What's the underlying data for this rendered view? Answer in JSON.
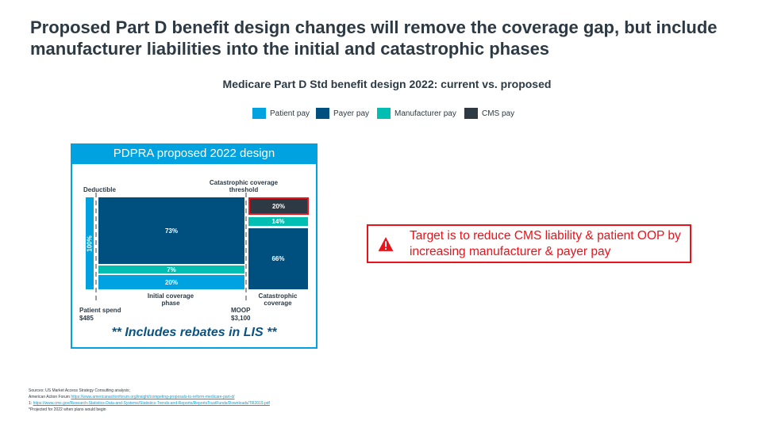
{
  "title": "Proposed Part D benefit design changes will remove the coverage gap, but include manufacturer liabilities into the initial and catastrophic phases",
  "chart_data": {
    "type": "bar",
    "title": "Medicare Part D Std benefit design 2022: current vs. proposed",
    "legend": [
      {
        "name": "Patient pay",
        "color": "#00a3e0"
      },
      {
        "name": "Payer pay",
        "color": "#00507f"
      },
      {
        "name": "Manufacturer pay",
        "color": "#00bfb2"
      },
      {
        "name": "CMS pay",
        "color": "#2d3a44"
      }
    ],
    "panel_title": "PDPRA proposed 2022 design",
    "categories": [
      "Deductible",
      "Initial coverage phase",
      "Catastrophic coverage"
    ],
    "series": [
      {
        "name": "Patient pay",
        "values": [
          100,
          20,
          0
        ],
        "labels": [
          "100%",
          "20%",
          ""
        ]
      },
      {
        "name": "Manufacturer pay",
        "values": [
          0,
          7,
          14
        ],
        "labels": [
          "",
          "7%",
          "14%"
        ]
      },
      {
        "name": "Payer pay",
        "values": [
          0,
          73,
          66
        ],
        "labels": [
          "",
          "73%",
          "66%"
        ]
      },
      {
        "name": "CMS pay",
        "values": [
          0,
          0,
          20
        ],
        "labels": [
          "",
          "",
          "20%"
        ]
      }
    ],
    "annotations": {
      "deductible": "Deductible",
      "threshold": "Catastrophic coverage threshold",
      "initial_phase": "Initial coverage phase",
      "catastrophic": "Catastrophic coverage",
      "patient_spend": "Patient spend",
      "patient_spend_value": "$485",
      "moop": "MOOP",
      "moop_value": "$3,100",
      "note": "** Includes rebates in LIS **"
    }
  },
  "callout": {
    "text": "Target is to reduce CMS liability & patient OOP by increasing manufacturer & payer pay",
    "icon": "warning-icon"
  },
  "sources": {
    "line1": "Sources: US Market Access Strategy Consulting analysis;",
    "line2_prefix": "American Action Forum ",
    "line2_link": "https://www.americanactionforum.org/insight/competing-proposals-to-reform-medicare-part-d/",
    "line3_prefix": "1: ",
    "line3_link": "https://www.cms.gov/Research-Statistics-Data-and-Systems/Statistics-Trends-and-Reports/ReportsTrustFunds/Downloads/TR2019.pdf",
    "line4": "*Projected for 2022 when plans would begin"
  }
}
